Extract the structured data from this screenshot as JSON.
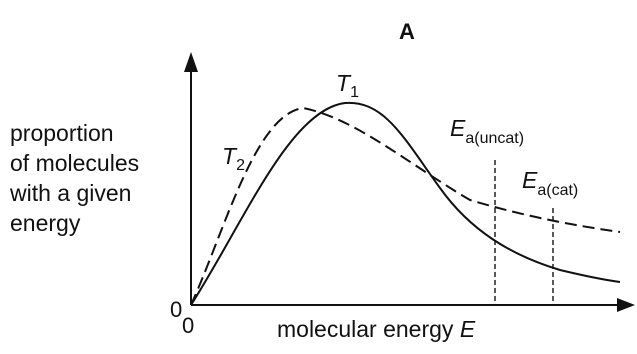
{
  "panel_label": "A",
  "y_axis_label": [
    "proportion",
    "of molecules",
    "with a given",
    "energy"
  ],
  "x_axis_label": "molecular energy",
  "x_axis_var": "E",
  "origin_x": "0",
  "origin_y": "0",
  "curves": {
    "t1": {
      "symbol": "T",
      "sub": "1",
      "style": "solid"
    },
    "t2": {
      "symbol": "T",
      "sub": "2",
      "style": "dashed"
    }
  },
  "thresholds": {
    "uncat": {
      "symbol": "E",
      "sub": "a(uncat)",
      "style": "dashed"
    },
    "cat": {
      "symbol": "E",
      "sub": "a(cat)",
      "style": "dashed"
    }
  }
}
